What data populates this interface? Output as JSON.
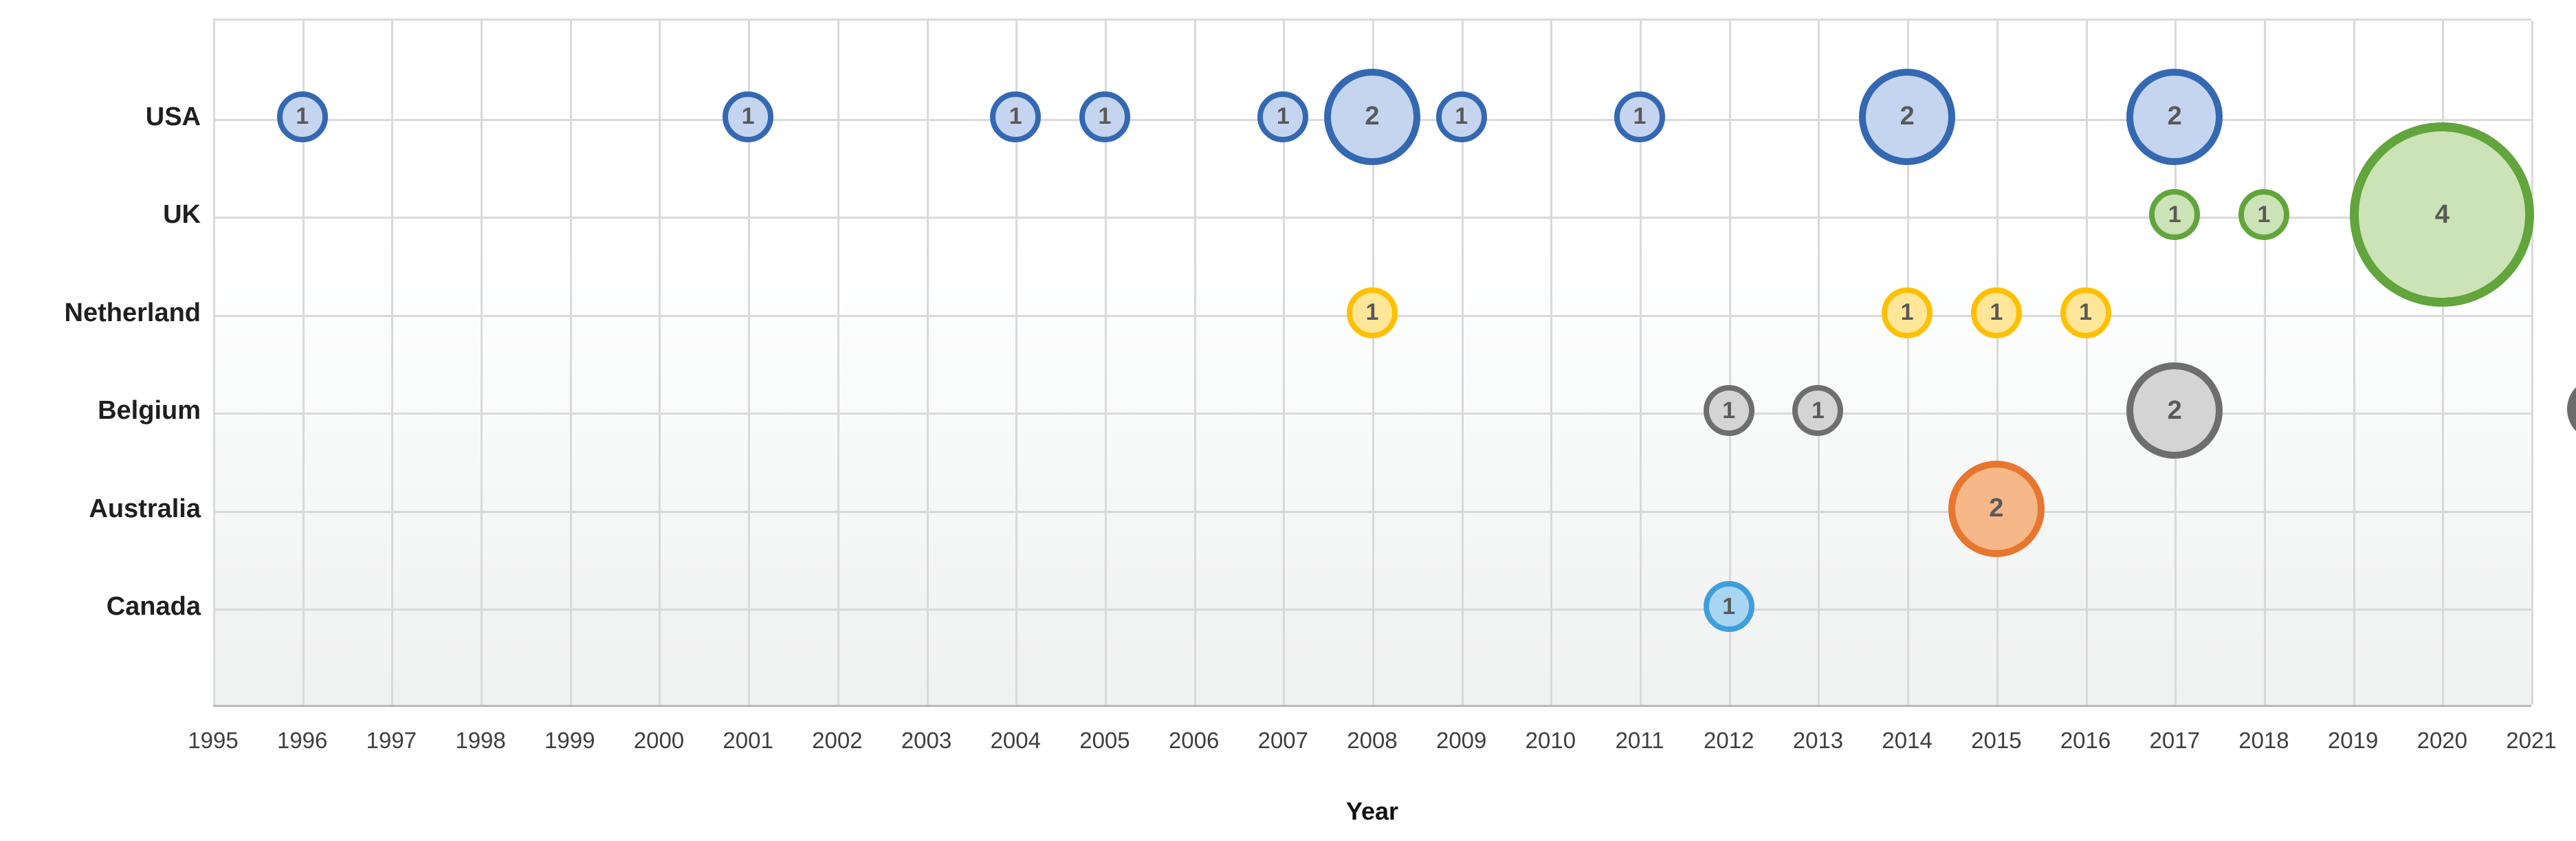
{
  "axis": {
    "x_title": "Year"
  },
  "chart_data": {
    "type": "scatter",
    "subtype": "bubble",
    "title": "",
    "xlabel": "Year",
    "ylabel": "",
    "xlim": [
      1995,
      2021
    ],
    "grid": true,
    "legend": false,
    "x_ticks": [
      "1995",
      "1996",
      "1997",
      "1998",
      "1999",
      "2000",
      "2001",
      "2002",
      "2003",
      "2004",
      "2005",
      "2006",
      "2007",
      "2008",
      "2009",
      "2010",
      "2011",
      "2012",
      "2013",
      "2014",
      "2015",
      "2016",
      "2017",
      "2018",
      "2019",
      "2020",
      "2021"
    ],
    "categories": [
      "USA",
      "UK",
      "Netherland",
      "Belgium",
      "Australia",
      "Canada"
    ],
    "bubble_label_color": "#595959",
    "series": [
      {
        "name": "USA",
        "color_border": "#3468b2",
        "color_fill": "#c5d5ef",
        "points": [
          {
            "x": 1996,
            "v": 1
          },
          {
            "x": 2001,
            "v": 1
          },
          {
            "x": 2004,
            "v": 1
          },
          {
            "x": 2005,
            "v": 1
          },
          {
            "x": 2007,
            "v": 1
          },
          {
            "x": 2008,
            "v": 2
          },
          {
            "x": 2009,
            "v": 1
          },
          {
            "x": 2011,
            "v": 1
          },
          {
            "x": 2014,
            "v": 2
          },
          {
            "x": 2017,
            "v": 2
          }
        ]
      },
      {
        "name": "UK",
        "color_border": "#61a53c",
        "color_fill": "#cbe3b6",
        "points": [
          {
            "x": 2017,
            "v": 1
          },
          {
            "x": 2018,
            "v": 1
          },
          {
            "x": 2020,
            "v": 4
          }
        ]
      },
      {
        "name": "Netherland",
        "color_border": "#fec000",
        "color_fill": "#ffe699",
        "points": [
          {
            "x": 2008,
            "v": 1
          },
          {
            "x": 2014,
            "v": 1
          },
          {
            "x": 2015,
            "v": 1
          },
          {
            "x": 2016,
            "v": 1
          }
        ]
      },
      {
        "name": "Belgium",
        "color_border": "#6e6e6e",
        "color_fill": "#d4d4d4",
        "points": [
          {
            "x": 2012,
            "v": 1
          },
          {
            "x": 2013,
            "v": 1
          },
          {
            "x": 2017,
            "v": 2
          }
        ]
      },
      {
        "name": "Australia",
        "color_border": "#e8762e",
        "color_fill": "#f6b888",
        "points": [
          {
            "x": 2015,
            "v": 2
          }
        ]
      },
      {
        "name": "Canada",
        "color_border": "#3f9fdb",
        "color_fill": "#a8d6f2",
        "points": [
          {
            "x": 2012,
            "v": 1
          }
        ]
      }
    ]
  }
}
